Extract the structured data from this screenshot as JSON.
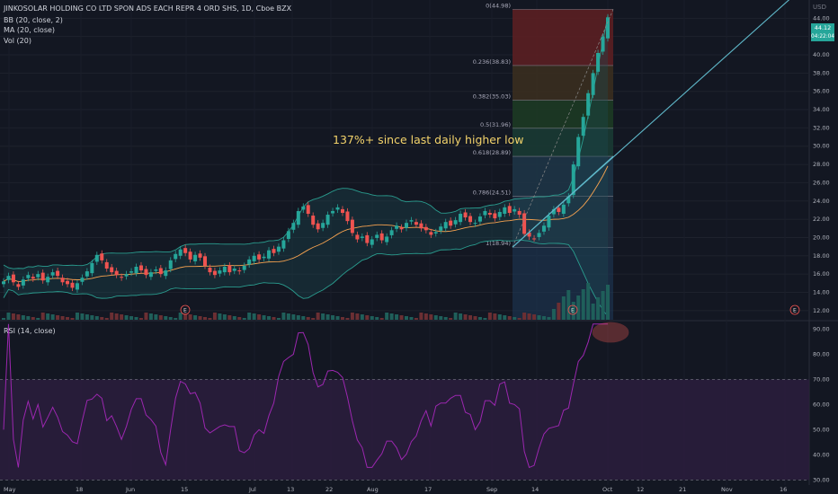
{
  "header": {
    "symbol_line": "JINKOSOLAR HOLDING CO LTD SPON ADS EACH REPR 4 ORD SHS, 1D, Cboe BZX",
    "indicators": [
      "BB (20, close, 2)",
      "MA (20, close)",
      "Vol (20)"
    ],
    "rsi_label": "RSI (14, close)",
    "currency": "USD"
  },
  "annotation": "137%+ since last daily higher low",
  "price_tags": {
    "last": "44.12",
    "countdown": "04:22:04"
  },
  "earnings_marker": "E",
  "colors": {
    "background": "#131722",
    "up": "#26a69a",
    "down": "#ef5350",
    "ma": "#f7a350",
    "bb": "#2a9d8f",
    "rsi": "#9c27b0",
    "rsi_band": "#2b1d3d",
    "trendline": "#5fb8c9",
    "annotation": "#f3d36b"
  },
  "chart_data": {
    "type": "candlestick",
    "price_axis": {
      "ticks": [
        "12.00",
        "14.00",
        "16.00",
        "18.00",
        "20.00",
        "22.00",
        "24.00",
        "26.00",
        "28.00",
        "30.00",
        "32.00",
        "34.00",
        "36.00",
        "38.00",
        "40.00",
        "42.00",
        "44.00"
      ],
      "range": [
        11,
        46
      ]
    },
    "rsi_axis": {
      "ticks": [
        "30.00",
        "40.00",
        "50.00",
        "60.00",
        "70.00",
        "80.00",
        "90.00"
      ],
      "range": [
        28,
        93
      ],
      "bands": [
        30,
        70
      ]
    },
    "x_labels": [
      "May",
      "18",
      "Jun",
      "15",
      "Jul",
      "13",
      "22",
      "Aug",
      "17",
      "Sep",
      "14",
      "Oct",
      "12",
      "21",
      "Nov",
      "16"
    ],
    "fib_levels": [
      {
        "label": "0(44.98)",
        "price": 44.98
      },
      {
        "label": "0.236(38.83)",
        "price": 38.83
      },
      {
        "label": "0.382(35.03)",
        "price": 35.03
      },
      {
        "label": "0.5(31.96)",
        "price": 31.96
      },
      {
        "label": "0.618(28.89)",
        "price": 28.89
      },
      {
        "label": "0.786(24.51)",
        "price": 24.51
      },
      {
        "label": "1(18.94)",
        "price": 18.94
      }
    ],
    "closes": [
      15.2,
      15.8,
      15.1,
      14.6,
      15.4,
      15.9,
      15.5,
      16.0,
      15.3,
      15.7,
      16.2,
      15.8,
      15.1,
      14.9,
      14.5,
      15.0,
      15.6,
      16.3,
      17.2,
      18.1,
      17.5,
      16.6,
      16.2,
      15.9,
      15.6,
      16.0,
      16.3,
      16.8,
      16.4,
      15.9,
      16.2,
      16.5,
      16.0,
      16.4,
      17.5,
      18.2,
      18.7,
      18.3,
      17.6,
      18.1,
      17.8,
      16.9,
      16.2,
      15.9,
      16.4,
      16.8,
      16.2,
      16.6,
      16.3,
      16.9,
      17.6,
      18.0,
      17.6,
      17.9,
      18.6,
      18.3,
      19.0,
      19.7,
      20.7,
      21.6,
      22.9,
      23.4,
      22.6,
      21.4,
      20.9,
      21.6,
      22.5,
      22.9,
      23.3,
      22.7,
      21.8,
      20.5,
      19.8,
      20.1,
      19.4,
      19.8,
      20.3,
      19.7,
      20.1,
      20.8,
      21.3,
      20.9,
      21.6,
      21.9,
      21.4,
      21.0,
      20.8,
      20.3,
      20.6,
      21.2,
      21.7,
      21.3,
      21.9,
      22.6,
      22.2,
      21.7,
      21.6,
      22.3,
      22.9,
      22.5,
      22.1,
      22.8,
      23.3,
      22.7,
      23.1,
      22.5,
      20.4,
      20.1,
      19.9,
      20.5,
      21.3,
      22.4,
      23.1,
      22.8,
      23.6,
      24.5,
      28.0,
      31.0,
      33.2,
      35.8,
      38.0,
      40.2,
      42.0,
      44.1
    ]
  }
}
